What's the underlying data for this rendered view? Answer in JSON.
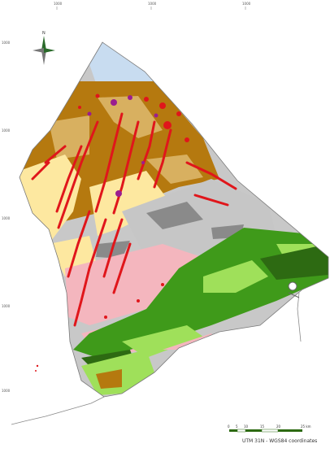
{
  "map": {
    "top_ticks": [
      "1000",
      "1000",
      "1000"
    ],
    "left_ticks": [
      "1000",
      "1000",
      "1000",
      "1000",
      "1000"
    ],
    "north_label": "N",
    "scale": {
      "labels": [
        "0",
        "5",
        "10",
        "15",
        "20",
        "25 km"
      ]
    },
    "caption": "UTM 31N - WGS84 coordinates",
    "colors": {
      "ocean": "#ffffff",
      "outline": "#7a7a7a",
      "brown": "#b5790f",
      "tan": "#d8b060",
      "light_yellow": "#fde8a0",
      "gray": "#c8c8c8",
      "dark_gray": "#8a8a8a",
      "pink": "#f4b6be",
      "green": "#3f9a1a",
      "light_green": "#9fe05a",
      "dark_green": "#2d6a12",
      "red": "#e0161b",
      "purple": "#9b1d8f",
      "pale_blue": "#c8dcf0"
    }
  }
}
